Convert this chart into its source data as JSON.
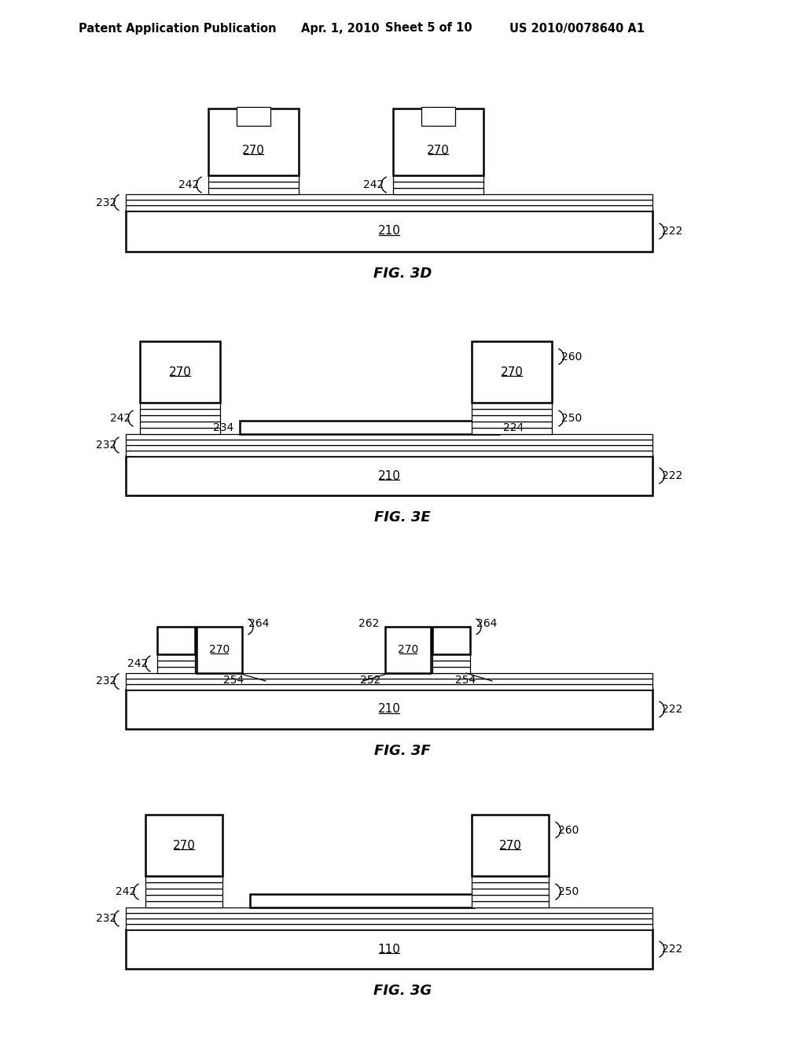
{
  "bg_color": "#ffffff",
  "line_color": "#000000",
  "header_left": "Patent Application Publication",
  "header_date": "Apr. 1, 2010",
  "header_sheet": "Sheet 5 of 10",
  "header_patent": "US 2010/0078640 A1",
  "fig_labels": [
    "FIG. 3D",
    "FIG. 3E",
    "FIG. 3F",
    "FIG. 3G"
  ]
}
